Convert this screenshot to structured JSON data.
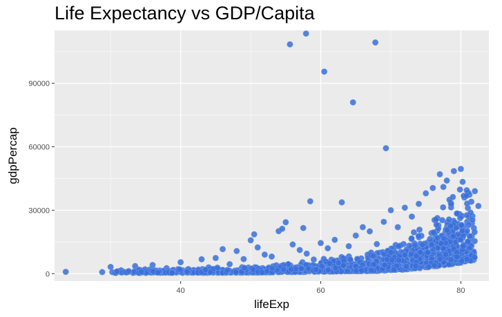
{
  "chart_data": {
    "type": "scatter",
    "title": "Life Expectancy vs GDP/Capita",
    "xlabel": "lifeExp",
    "ylabel": "gdpPercap",
    "xlim": [
      22,
      84
    ],
    "ylim": [
      -3500,
      115000
    ],
    "x_ticks": [
      40,
      60,
      80
    ],
    "x_tick_labels": [
      "40",
      "60",
      "80"
    ],
    "y_ticks": [
      0,
      30000,
      60000,
      90000
    ],
    "y_tick_labels": [
      "0",
      "30000",
      "60000",
      "90000"
    ],
    "grid": true,
    "legend": "none",
    "colors": {
      "panel": "#ebebeb",
      "grid": "#ffffff",
      "point": "#3a6fd8",
      "point_stroke": "#6e98e8"
    },
    "points": [
      [
        23.6,
        880
      ],
      [
        28.8,
        740
      ],
      [
        30.0,
        3200
      ],
      [
        31.0,
        1100
      ],
      [
        32.5,
        800
      ],
      [
        33.5,
        3600
      ],
      [
        34.0,
        1300
      ],
      [
        35.0,
        900
      ],
      [
        36.0,
        4100
      ],
      [
        37.0,
        1500
      ],
      [
        38.0,
        2600
      ],
      [
        39.0,
        1000
      ],
      [
        40.0,
        5400
      ],
      [
        41.0,
        2000
      ],
      [
        42.0,
        1200
      ],
      [
        43.0,
        6800
      ],
      [
        44.0,
        3000
      ],
      [
        45.0,
        7400
      ],
      [
        46.0,
        11600
      ],
      [
        47.0,
        4500
      ],
      [
        48.0,
        10700
      ],
      [
        49.0,
        6900
      ],
      [
        50.0,
        15800
      ],
      [
        50.5,
        18600
      ],
      [
        51.0,
        12400
      ],
      [
        52.0,
        9000
      ],
      [
        53.0,
        8100
      ],
      [
        54.0,
        20100
      ],
      [
        54.5,
        21200
      ],
      [
        55.0,
        24300
      ],
      [
        56.0,
        13800
      ],
      [
        57.0,
        11200
      ],
      [
        57.5,
        21600
      ],
      [
        58.0,
        9500
      ],
      [
        58.5,
        34200
      ],
      [
        59.0,
        6700
      ],
      [
        60.0,
        14500
      ],
      [
        61.0,
        12000
      ],
      [
        62.0,
        16000
      ],
      [
        63.0,
        33700
      ],
      [
        64.0,
        13000
      ],
      [
        65.0,
        18000
      ],
      [
        66.0,
        22000
      ],
      [
        67.0,
        20000
      ],
      [
        68.0,
        14000
      ],
      [
        69.0,
        24500
      ],
      [
        70.0,
        30000
      ],
      [
        71.0,
        22000
      ],
      [
        72.0,
        31200
      ],
      [
        73.0,
        27000
      ],
      [
        74.0,
        33000
      ],
      [
        75.0,
        38000
      ],
      [
        76.0,
        40500
      ],
      [
        77.0,
        47000
      ],
      [
        77.5,
        41000
      ],
      [
        78.0,
        44000
      ],
      [
        79.0,
        48500
      ],
      [
        80.0,
        49500
      ],
      [
        80.5,
        36000
      ],
      [
        81.0,
        31000
      ],
      [
        81.5,
        34000
      ],
      [
        82.0,
        39000
      ],
      [
        82.5,
        32000
      ],
      [
        78.5,
        12000
      ],
      [
        77.0,
        9000
      ],
      [
        76.0,
        7000
      ],
      [
        75.0,
        5000
      ],
      [
        79.0,
        8000
      ],
      [
        55.6,
        108400
      ],
      [
        57.9,
        113500
      ],
      [
        60.5,
        95500
      ],
      [
        64.6,
        81000
      ],
      [
        67.8,
        109300
      ],
      [
        69.3,
        59300
      ]
    ]
  }
}
